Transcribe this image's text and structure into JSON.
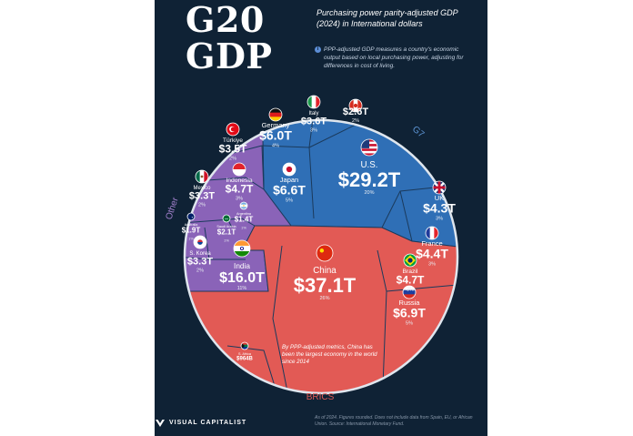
{
  "header": {
    "title_line1": "G20",
    "title_line2": "GDP",
    "subtitle": "Purchasing power parity-adjusted GDP (2024) in International dollars",
    "info_icon": "i",
    "info_text": "PPP-adjusted GDP measures a country's economic output based on local purchasing power, adjusting for differences in cost of living."
  },
  "colors": {
    "background": "#0f2235",
    "g7": "#2f6fb6",
    "brics": "#e25a55",
    "other": "#8a63b8",
    "border": "#dfe6ee",
    "cell_line": "#1b3a5c"
  },
  "chart_data": {
    "type": "voronoi-treemap",
    "unit": "International dollars (PPP), 2024",
    "groups": [
      {
        "name": "G7",
        "color": "#2f6fb6",
        "countries": [
          {
            "name": "U.S.",
            "label": "$29.2T",
            "value_trillions": 29.2,
            "share": "20%",
            "flag": "us-flag-icon"
          },
          {
            "name": "Japan",
            "label": "$6.6T",
            "value_trillions": 6.6,
            "share": "5%",
            "flag": "japan-flag-icon"
          },
          {
            "name": "Germany",
            "label": "$6.0T",
            "value_trillions": 6.0,
            "share": "4%",
            "flag": "germany-flag-icon"
          },
          {
            "name": "France",
            "label": "$4.4T",
            "value_trillions": 4.4,
            "share": "3%",
            "flag": "france-flag-icon"
          },
          {
            "name": "UK",
            "label": "$4.3T",
            "value_trillions": 4.3,
            "share": "3%",
            "flag": "uk-flag-icon"
          },
          {
            "name": "Italy",
            "label": "$3.6T",
            "value_trillions": 3.6,
            "share": "3%",
            "flag": "italy-flag-icon"
          },
          {
            "name": "Canada",
            "label": "$2.6T",
            "value_trillions": 2.6,
            "share": "2%",
            "flag": "canada-flag-icon"
          }
        ]
      },
      {
        "name": "BRICS",
        "color": "#e25a55",
        "countries": [
          {
            "name": "China",
            "label": "$37.1T",
            "value_trillions": 37.1,
            "share": "26%",
            "flag": "china-flag-icon"
          },
          {
            "name": "India",
            "label": "$16.0T",
            "value_trillions": 16.0,
            "share": "11%",
            "flag": "india-flag-icon"
          },
          {
            "name": "Russia",
            "label": "$6.9T",
            "value_trillions": 6.9,
            "share": "5%",
            "flag": "russia-flag-icon"
          },
          {
            "name": "Brazil",
            "label": "$4.7T",
            "value_trillions": 4.7,
            "share": "3%",
            "flag": "brazil-flag-icon"
          },
          {
            "name": "S. Africa",
            "label": "$964B",
            "value_trillions": 0.964,
            "share": "",
            "flag": "south-africa-flag-icon"
          }
        ]
      },
      {
        "name": "Other",
        "color": "#8a63b8",
        "countries": [
          {
            "name": "Indonesia",
            "label": "$4.7T",
            "value_trillions": 4.7,
            "share": "3%",
            "flag": "indonesia-flag-icon"
          },
          {
            "name": "Türkiye",
            "label": "$3.5T",
            "value_trillions": 3.5,
            "share": "2%",
            "flag": "turkiye-flag-icon"
          },
          {
            "name": "Mexico",
            "label": "$3.3T",
            "value_trillions": 3.3,
            "share": "2%",
            "flag": "mexico-flag-icon"
          },
          {
            "name": "S. Korea",
            "label": "$3.3T",
            "value_trillions": 3.3,
            "share": "2%",
            "flag": "south-korea-flag-icon"
          },
          {
            "name": "Saudi Arabia",
            "label": "$2.1T",
            "value_trillions": 2.1,
            "share": "1%",
            "flag": "saudi-flag-icon"
          },
          {
            "name": "Australia",
            "label": "$1.9T",
            "value_trillions": 1.9,
            "share": "1%",
            "flag": "australia-flag-icon"
          },
          {
            "name": "Argentina",
            "label": "$1.4T",
            "value_trillions": 1.4,
            "share": "1%",
            "flag": "argentina-flag-icon"
          }
        ]
      }
    ],
    "annotation": "By PPP-adjusted metrics, China has been the largest economy in the world since 2014",
    "legend": "none"
  },
  "footer": {
    "brand": "VISUAL CAPITALIST",
    "footnote": "As of 2024. Figures rounded. Does not include data from Spain, EU, or African Union. Source: International Monetary Fund."
  }
}
